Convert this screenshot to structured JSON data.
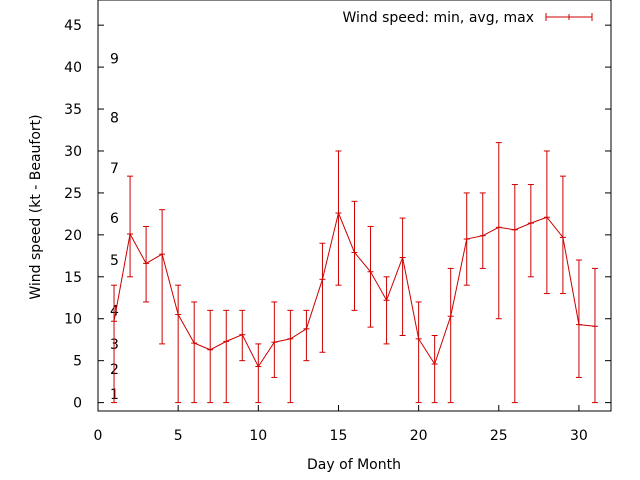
{
  "chart_data": {
    "type": "line",
    "title": "",
    "xlabel": "Day of Month",
    "ylabel": "Wind speed (kt - Beaufort)",
    "xlim": [
      0,
      32
    ],
    "ylim": [
      -1,
      48
    ],
    "x_ticks": [
      0,
      5,
      10,
      15,
      20,
      25,
      30
    ],
    "y_ticks": [
      0,
      5,
      10,
      15,
      20,
      25,
      30,
      35,
      40,
      45
    ],
    "grid": false,
    "legend_position": "top-right",
    "series": [
      {
        "name": "Wind speed: min, avg, max",
        "color": "#cc0000",
        "x": [
          1,
          2,
          3,
          4,
          5,
          6,
          7,
          8,
          9,
          10,
          11,
          12,
          13,
          14,
          15,
          16,
          17,
          18,
          19,
          20,
          21,
          22,
          23,
          24,
          25,
          26,
          27,
          28,
          29,
          30,
          31
        ],
        "avg": [
          9.7,
          20.1,
          16.6,
          17.7,
          10.5,
          7.1,
          6.3,
          7.3,
          8.1,
          4.3,
          7.2,
          7.6,
          8.8,
          14.7,
          22.6,
          17.9,
          15.6,
          12.2,
          17.3,
          7.6,
          4.6,
          10.3,
          19.5,
          19.9,
          20.9,
          20.6,
          21.4,
          22.1,
          19.7,
          9.3,
          9.1
        ],
        "min": [
          0,
          15,
          12,
          7,
          0,
          0,
          0,
          0,
          5,
          0,
          3,
          0,
          5,
          6,
          14,
          11,
          9,
          7,
          8,
          0,
          0,
          0,
          14,
          16,
          10,
          0,
          15,
          13,
          13,
          3,
          0
        ],
        "max": [
          14,
          27,
          21,
          23,
          14,
          12,
          11,
          11,
          11,
          7,
          12,
          11,
          11,
          19,
          30,
          24,
          21,
          15,
          22,
          12,
          8,
          16,
          25,
          25,
          31,
          26,
          26,
          30,
          27,
          17,
          16
        ]
      }
    ],
    "annotations": [
      {
        "text": "1",
        "x": 1,
        "y": 1
      },
      {
        "text": "2",
        "x": 1,
        "y": 4
      },
      {
        "text": "3",
        "x": 1,
        "y": 7
      },
      {
        "text": "4",
        "x": 1,
        "y": 11
      },
      {
        "text": "5",
        "x": 1,
        "y": 17
      },
      {
        "text": "6",
        "x": 1,
        "y": 22
      },
      {
        "text": "7",
        "x": 1,
        "y": 28
      },
      {
        "text": "8",
        "x": 1,
        "y": 34
      },
      {
        "text": "9",
        "x": 1,
        "y": 41
      }
    ]
  }
}
